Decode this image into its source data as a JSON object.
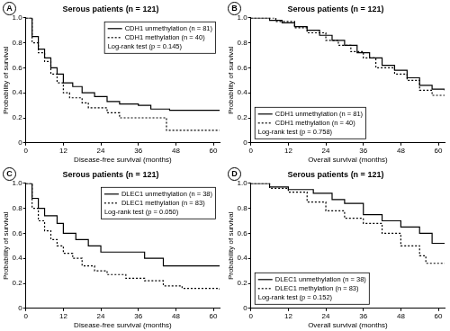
{
  "chart_data": [
    {
      "type": "step",
      "panel": "A",
      "title": "Serous patients (n = 121)",
      "x_label": "Disease-free survival (months)",
      "y_label": "Probability of survival",
      "xlim": [
        0,
        62
      ],
      "xticks": [
        0,
        12,
        24,
        36,
        48,
        60
      ],
      "ylim": [
        0,
        1
      ],
      "yticks": [
        0,
        0.2,
        0.4,
        0.6,
        0.8,
        {
          "value": 1,
          "label": "1.0"
        }
      ],
      "grid": false,
      "legend": "upper right",
      "annotation": "Log-rank test (p = 0.145)",
      "series": [
        {
          "name": "CDH1 unmethylation (n = 81)",
          "color": "#000000",
          "line_style": "solid",
          "x": [
            0,
            2,
            4,
            6,
            8,
            10,
            12,
            15,
            18,
            22,
            26,
            30,
            36,
            40,
            46,
            62
          ],
          "values": [
            1,
            0.85,
            0.75,
            0.68,
            0.6,
            0.55,
            0.48,
            0.45,
            0.4,
            0.37,
            0.33,
            0.31,
            0.3,
            0.27,
            0.26,
            0.26
          ]
        },
        {
          "name": "CDH1 methylation (n = 40)",
          "color": "#000000",
          "line_style": "dotted",
          "x": [
            0,
            2,
            4,
            6,
            8,
            10,
            12,
            14,
            18,
            20,
            26,
            30,
            44,
            45,
            62
          ],
          "values": [
            1,
            0.8,
            0.72,
            0.65,
            0.55,
            0.48,
            0.4,
            0.36,
            0.32,
            0.28,
            0.24,
            0.2,
            0.2,
            0.1,
            0.1
          ]
        }
      ]
    },
    {
      "type": "step",
      "panel": "B",
      "title": "Serous patients (n = 121)",
      "x_label": "Overall survival (months)",
      "y_label": "Probability of survival",
      "xlim": [
        0,
        62
      ],
      "xticks": [
        0,
        12,
        24,
        36,
        48,
        60
      ],
      "ylim": [
        0,
        1
      ],
      "yticks": [
        0,
        0.2,
        0.4,
        0.6,
        0.8,
        {
          "value": 1,
          "label": "1.0"
        }
      ],
      "grid": false,
      "legend": "lower left",
      "annotation": "Log-rank test (p = 0.758)",
      "series": [
        {
          "name": "CDH1 unmethylation (n = 81)",
          "color": "#000000",
          "line_style": "solid",
          "x": [
            0,
            6,
            10,
            14,
            18,
            22,
            26,
            30,
            34,
            38,
            42,
            46,
            50,
            54,
            58,
            62
          ],
          "values": [
            1,
            0.98,
            0.96,
            0.93,
            0.9,
            0.86,
            0.82,
            0.78,
            0.72,
            0.68,
            0.62,
            0.58,
            0.52,
            0.46,
            0.43,
            0.42
          ]
        },
        {
          "name": "CDH1 methylation (n = 40)",
          "color": "#000000",
          "line_style": "dotted",
          "x": [
            0,
            8,
            14,
            18,
            24,
            28,
            32,
            36,
            40,
            46,
            50,
            54,
            58,
            62
          ],
          "values": [
            1,
            0.97,
            0.92,
            0.88,
            0.82,
            0.78,
            0.73,
            0.68,
            0.6,
            0.55,
            0.5,
            0.42,
            0.38,
            0.38
          ]
        }
      ]
    },
    {
      "type": "step",
      "panel": "C",
      "title": "Serous patients (n = 121)",
      "x_label": "Disease-free survival (months)",
      "y_label": "Probability of survival",
      "xlim": [
        0,
        62
      ],
      "xticks": [
        0,
        12,
        24,
        36,
        48,
        60
      ],
      "ylim": [
        0,
        1
      ],
      "yticks": [
        0,
        0.2,
        0.4,
        0.6,
        0.8,
        {
          "value": 1,
          "label": "1.0"
        }
      ],
      "grid": false,
      "legend": "upper right",
      "annotation": "Log-rank test (p = 0.050)",
      "series": [
        {
          "name": "DLEC1 unmethylation (n = 38)",
          "color": "#000000",
          "line_style": "solid",
          "x": [
            0,
            2,
            4,
            6,
            10,
            12,
            16,
            20,
            24,
            38,
            44,
            62
          ],
          "values": [
            1,
            0.88,
            0.8,
            0.74,
            0.68,
            0.6,
            0.55,
            0.5,
            0.45,
            0.4,
            0.34,
            0.34
          ]
        },
        {
          "name": "DLEC1 methylation (n = 83)",
          "color": "#000000",
          "line_style": "dotted",
          "x": [
            0,
            2,
            4,
            6,
            8,
            10,
            12,
            15,
            18,
            22,
            26,
            32,
            38,
            44,
            50,
            62
          ],
          "values": [
            1,
            0.8,
            0.7,
            0.62,
            0.55,
            0.5,
            0.44,
            0.4,
            0.34,
            0.3,
            0.27,
            0.24,
            0.22,
            0.18,
            0.16,
            0.15
          ]
        }
      ]
    },
    {
      "type": "step",
      "panel": "D",
      "title": "Serous patients (n = 121)",
      "x_label": "Overall survival (months)",
      "y_label": "Probability of survival",
      "xlim": [
        0,
        62
      ],
      "xticks": [
        0,
        12,
        24,
        36,
        48,
        60
      ],
      "ylim": [
        0,
        1
      ],
      "yticks": [
        0,
        0.2,
        0.4,
        0.6,
        0.8,
        {
          "value": 1,
          "label": "1.0"
        }
      ],
      "grid": false,
      "legend": "lower left",
      "annotation": "Log-rank test (p = 0.152)",
      "series": [
        {
          "name": "DLEC1 unmethylation (n = 38)",
          "color": "#000000",
          "line_style": "solid",
          "x": [
            0,
            6,
            12,
            20,
            26,
            30,
            36,
            42,
            48,
            54,
            58,
            62
          ],
          "values": [
            1,
            0.97,
            0.95,
            0.92,
            0.87,
            0.84,
            0.75,
            0.7,
            0.65,
            0.6,
            0.52,
            0.52
          ]
        },
        {
          "name": "DLEC1 methylation (n = 83)",
          "color": "#000000",
          "line_style": "dotted",
          "x": [
            0,
            6,
            12,
            18,
            24,
            30,
            36,
            42,
            48,
            54,
            56,
            62
          ],
          "values": [
            1,
            0.96,
            0.93,
            0.85,
            0.78,
            0.72,
            0.68,
            0.6,
            0.5,
            0.42,
            0.36,
            0.36
          ]
        }
      ]
    }
  ]
}
